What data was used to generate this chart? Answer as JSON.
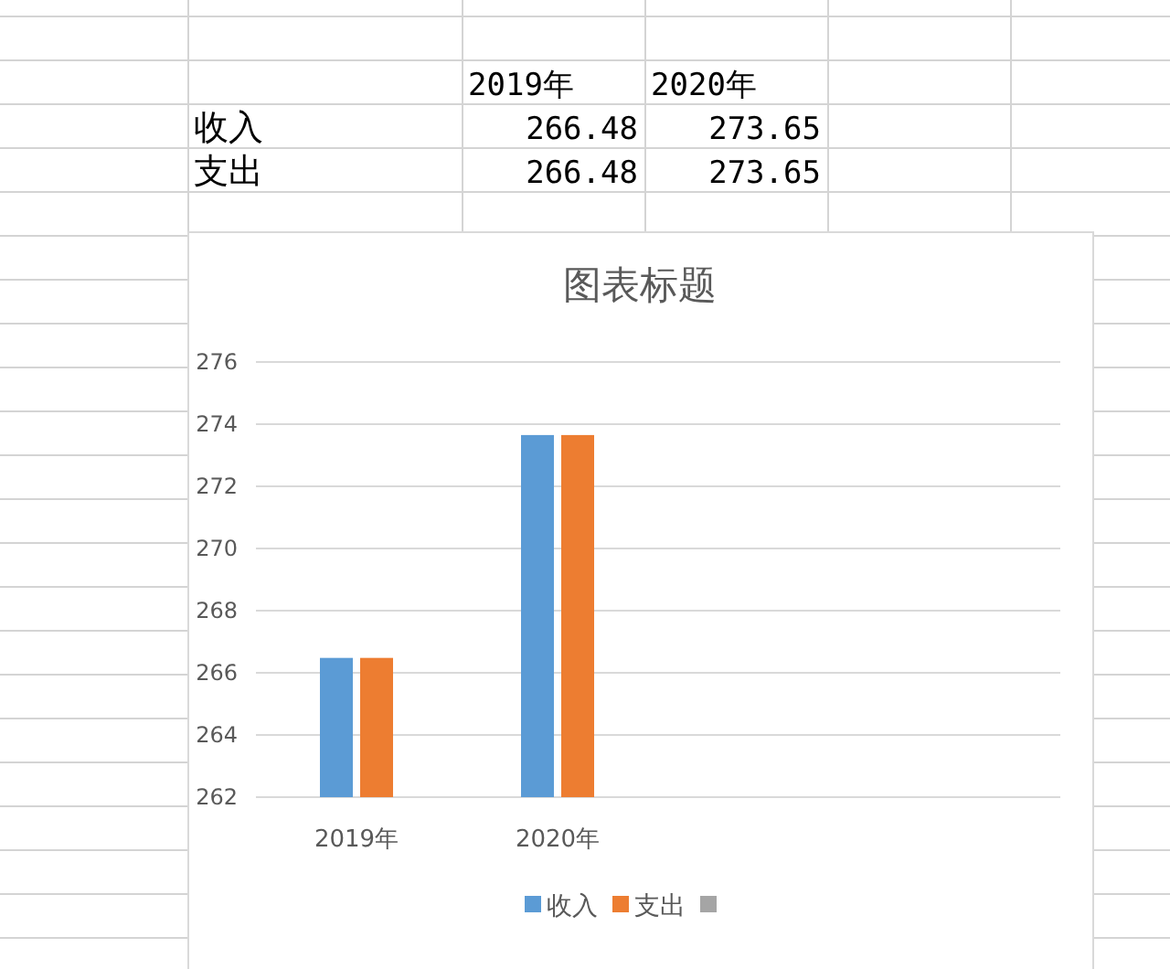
{
  "chart_data": {
    "type": "bar",
    "title": "图表标题",
    "categories": [
      "2019年",
      "2020年",
      null,
      null
    ],
    "series": [
      {
        "name": "收入",
        "color": "#5b9bd5",
        "values": [
          266.48,
          273.65,
          null,
          null
        ]
      },
      {
        "name": "支出",
        "color": "#ed7d31",
        "values": [
          266.48,
          273.65,
          null,
          null
        ]
      }
    ],
    "annotations": [
      "266.48",
      "273.65",
      "266.48",
      "273.65"
    ],
    "ylim": [
      262,
      276
    ],
    "yticks": [
      262,
      264,
      266,
      268,
      270,
      272,
      274,
      276
    ],
    "grid": "y",
    "legend": "bottom"
  }
}
